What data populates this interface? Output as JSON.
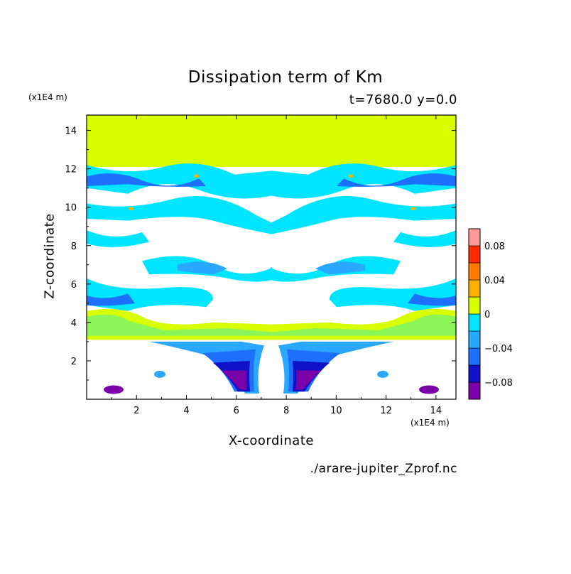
{
  "chart_data": {
    "type": "heatmap",
    "title": "Dissipation term of Km",
    "subtitle": "t=7680.0 y=0.0",
    "xlabel": "X-coordinate",
    "ylabel": "Z-coordinate",
    "x_unit": "(x1E4 m)",
    "y_unit": "(x1E4 m)",
    "xlim": [
      0,
      14.8
    ],
    "ylim": [
      0,
      14.8
    ],
    "x_ticks": [
      "2",
      "4",
      "6",
      "8",
      "10",
      "12",
      "14"
    ],
    "y_ticks": [
      "2",
      "4",
      "6",
      "8",
      "10",
      "12",
      "14"
    ],
    "colorbar": {
      "levels": [
        -0.1,
        -0.08,
        -0.06,
        -0.04,
        -0.02,
        0,
        0.02,
        0.04,
        0.06,
        0.08,
        0.1
      ],
      "tick_labels": [
        "0.08",
        "0.04",
        "0",
        "-0.04",
        "-0.08"
      ],
      "colors": [
        "#7a00a8",
        "#1010c8",
        "#1f6fff",
        "#2aa8ff",
        "#00e5ff",
        "#d8ff00",
        "#ffb000",
        "#ff7a00",
        "#ff2a00",
        "#ff9a9a"
      ]
    },
    "regions": [
      {
        "level": "0 to 0.02",
        "z_range": [
          12.1,
          14.8
        ],
        "description_color": "#d8ff00"
      },
      {
        "level": "-0.02 to 0",
        "z_range": [
          3.0,
          12.3
        ]
      },
      {
        "level": "-0.1 to -0.06",
        "z_range": [
          0.2,
          2.2
        ]
      }
    ]
  },
  "source_file": "./arare-jupiter_Zprof.nc"
}
